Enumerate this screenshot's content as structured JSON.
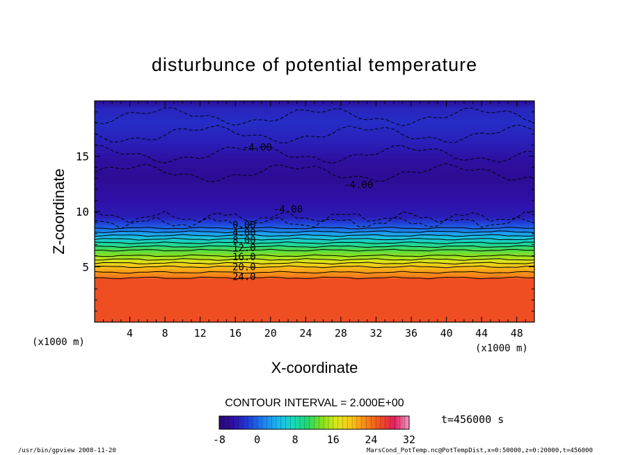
{
  "colors": {
    "background": "#ffffff",
    "axis": "#000000",
    "colormap": [
      "#2a0a6e",
      "#2f0fa8",
      "#1f3fd8",
      "#1f7ff0",
      "#18b8f0",
      "#18d8c0",
      "#20d870",
      "#80e020",
      "#d8e818",
      "#f8c818",
      "#f88818",
      "#f05020",
      "#e02060",
      "#f098c0"
    ]
  },
  "chart_data": {
    "type": "heatmap",
    "title": "disturbunce of potential temperature",
    "xlabel": "X-coordinate",
    "ylabel": "Z-coordinate",
    "x_unit_left": "(x1000 m)",
    "x_unit_right": "(x1000 m)",
    "xlim": [
      0,
      50
    ],
    "ylim": [
      0,
      20
    ],
    "xticks": [
      "4",
      "8",
      "12",
      "16",
      "20",
      "24",
      "28",
      "32",
      "36",
      "40",
      "44",
      "48"
    ],
    "yticks": [
      "5",
      "10",
      "15"
    ],
    "contour_interval": "CONTOUR INTERVAL = 2.000E+00",
    "time": "t=456000 s",
    "colorbar": {
      "min": -8,
      "max": 32,
      "ticks": [
        "-8",
        "0",
        "8",
        "16",
        "24",
        "32"
      ]
    },
    "contour_labels": [
      {
        "text": "-4.00",
        "x": 18.5,
        "z": 15.5
      },
      {
        "text": "-4.00",
        "x": 30.0,
        "z": 12.1
      },
      {
        "text": "-4.00",
        "x": 22.0,
        "z": 9.9
      },
      {
        "text": "0.00",
        "x": 17.0,
        "z": 8.5
      },
      {
        "text": "4.00",
        "x": 17.0,
        "z": 7.8
      },
      {
        "text": "8.00",
        "x": 17.0,
        "z": 7.1
      },
      {
        "text": "12.0",
        "x": 17.0,
        "z": 6.4
      },
      {
        "text": "16.0",
        "x": 17.0,
        "z": 5.6
      },
      {
        "text": "20.0",
        "x": 17.0,
        "z": 4.7
      },
      {
        "text": "24.0",
        "x": 17.0,
        "z": 3.8
      }
    ],
    "profile": [
      {
        "z": 0.0,
        "value": 26
      },
      {
        "z": 3.9,
        "value": 26
      },
      {
        "z": 4.0,
        "value": 24
      },
      {
        "z": 4.5,
        "value": 22
      },
      {
        "z": 5.0,
        "value": 20
      },
      {
        "z": 5.5,
        "value": 17
      },
      {
        "z": 6.0,
        "value": 14
      },
      {
        "z": 6.5,
        "value": 12
      },
      {
        "z": 7.0,
        "value": 9
      },
      {
        "z": 7.5,
        "value": 6
      },
      {
        "z": 8.0,
        "value": 3
      },
      {
        "z": 8.5,
        "value": 0
      },
      {
        "z": 9.0,
        "value": -2
      },
      {
        "z": 9.5,
        "value": -4
      },
      {
        "z": 11.0,
        "value": -5
      },
      {
        "z": 13.0,
        "value": -6
      },
      {
        "z": 14.5,
        "value": -5.5
      },
      {
        "z": 16.0,
        "value": -4
      },
      {
        "z": 18.0,
        "value": -3
      },
      {
        "z": 19.3,
        "value": -3.5
      },
      {
        "z": 20.0,
        "value": -6
      }
    ]
  },
  "footer": {
    "left": "/usr/bin/gpview  2008-11-20",
    "right": "MarsCond_PotTemp.nc@PotTempDist,x=0:50000,z=0:20000,t=456000"
  }
}
